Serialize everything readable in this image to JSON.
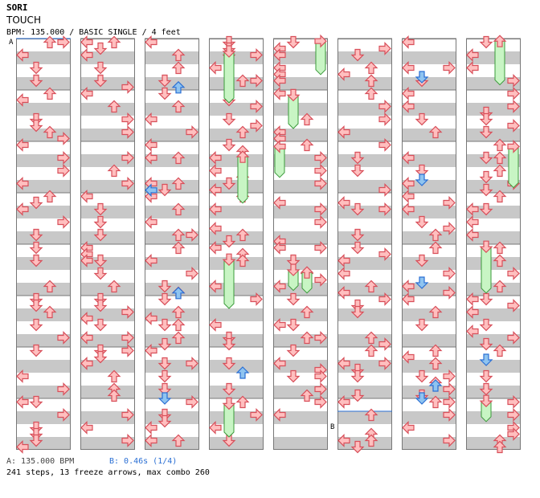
{
  "header": {
    "artist": "SORI",
    "title": "TOUCH",
    "info": "BPM: 135.000 / BASIC SINGLE / 4 feet"
  },
  "markers": {
    "a": "A",
    "b": "B"
  },
  "footer": {
    "bpm_note": "A: 135.000 BPM",
    "stop_note": "B: 0.46s (1/4)",
    "stats": "241 steps, 13 freeze arrows, max combo 260"
  },
  "colors": {
    "step_fill": "#ffbfbf",
    "step_stroke": "#d84f5a",
    "freeze_fill": "#c8f5c4",
    "freeze_stroke": "#3a9a3a",
    "shock_fill": "#8fc4f0",
    "shock_stroke": "#2a6fd4",
    "band": "#c8c8c8"
  },
  "icons": [
    "left-arrow-icon",
    "down-arrow-icon",
    "up-arrow-icon",
    "right-arrow-icon",
    "freeze-arrow-icon"
  ],
  "chart": {
    "columns": 8,
    "measures_per_column": 8,
    "lanes": [
      "left",
      "down",
      "up",
      "right"
    ],
    "notes": [
      [
        [
          0,
          0,
          0
        ],
        [
          0,
          3,
          0
        ],
        [
          1,
          1,
          0
        ],
        [
          1,
          2,
          0
        ],
        [
          1,
          4,
          0
        ],
        [
          1,
          4,
          1
        ],
        [
          2,
          2,
          0
        ],
        [
          2,
          2,
          1
        ],
        [
          2,
          5,
          0
        ],
        [
          2,
          5,
          1
        ],
        [
          2,
          6,
          0
        ],
        [
          2,
          7,
          0
        ],
        [
          2,
          7,
          1
        ],
        [
          3,
          0,
          0
        ],
        [
          3,
          1,
          0
        ],
        [
          3,
          3,
          1
        ],
        [
          3,
          5,
          1
        ],
        [
          3,
          6,
          1
        ],
        [
          3,
          7,
          0
        ],
        [
          3,
          7,
          1
        ],
        [
          4,
          5,
          0
        ],
        [
          4,
          5,
          1
        ],
        [
          4,
          6,
          1
        ],
        [
          4,
          7,
          0
        ],
        [
          4,
          7,
          1
        ]
      ]
    ],
    "freezes": [
      {
        "col": 3,
        "lane": 1,
        "start": 0.25,
        "end": 1.25,
        "kind": "freeze"
      },
      {
        "col": 3,
        "lane": 2,
        "start": 2.3,
        "end": 3.2,
        "kind": "freeze"
      },
      {
        "col": 3,
        "lane": 1,
        "start": 4.3,
        "end": 5.25,
        "kind": "freeze"
      },
      {
        "col": 3,
        "lane": 1,
        "start": 7.1,
        "end": 7.75,
        "kind": "freeze"
      },
      {
        "col": 4,
        "lane": 3,
        "start": 0.05,
        "end": 0.7,
        "kind": "freeze"
      },
      {
        "col": 4,
        "lane": 1,
        "start": 1.1,
        "end": 1.75,
        "kind": "freeze"
      },
      {
        "col": 4,
        "lane": 0,
        "start": 2.1,
        "end": 2.7,
        "kind": "freeze"
      },
      {
        "col": 4,
        "lane": 1,
        "start": 4.5,
        "end": 4.9,
        "kind": "freeze"
      },
      {
        "col": 4,
        "lane": 2,
        "start": 4.55,
        "end": 4.95,
        "kind": "freeze"
      },
      {
        "col": 7,
        "lane": 2,
        "start": 0.05,
        "end": 0.9,
        "kind": "freeze"
      },
      {
        "col": 7,
        "lane": 3,
        "start": 2.1,
        "end": 2.9,
        "kind": "freeze"
      },
      {
        "col": 7,
        "lane": 1,
        "start": 4.05,
        "end": 4.95,
        "kind": "freeze"
      },
      {
        "col": 7,
        "lane": 1,
        "start": 7.05,
        "end": 7.45,
        "kind": "freeze"
      }
    ],
    "shocks": [
      {
        "col": 2,
        "lane": 2,
        "beat": 0.95
      },
      {
        "col": 2,
        "lane": 0,
        "beat": 2.95
      },
      {
        "col": 2,
        "lane": 2,
        "beat": 4.95
      },
      {
        "col": 2,
        "lane": 1,
        "beat": 7.0
      },
      {
        "col": 3,
        "lane": 2,
        "beat": 6.5
      },
      {
        "col": 6,
        "lane": 1,
        "beat": 0.75
      },
      {
        "col": 6,
        "lane": 1,
        "beat": 2.75
      },
      {
        "col": 6,
        "lane": 1,
        "beat": 4.75
      },
      {
        "col": 6,
        "lane": 2,
        "beat": 6.75
      },
      {
        "col": 6,
        "lane": 1,
        "beat": 7.0
      },
      {
        "col": 7,
        "lane": 1,
        "beat": 6.25
      }
    ]
  }
}
